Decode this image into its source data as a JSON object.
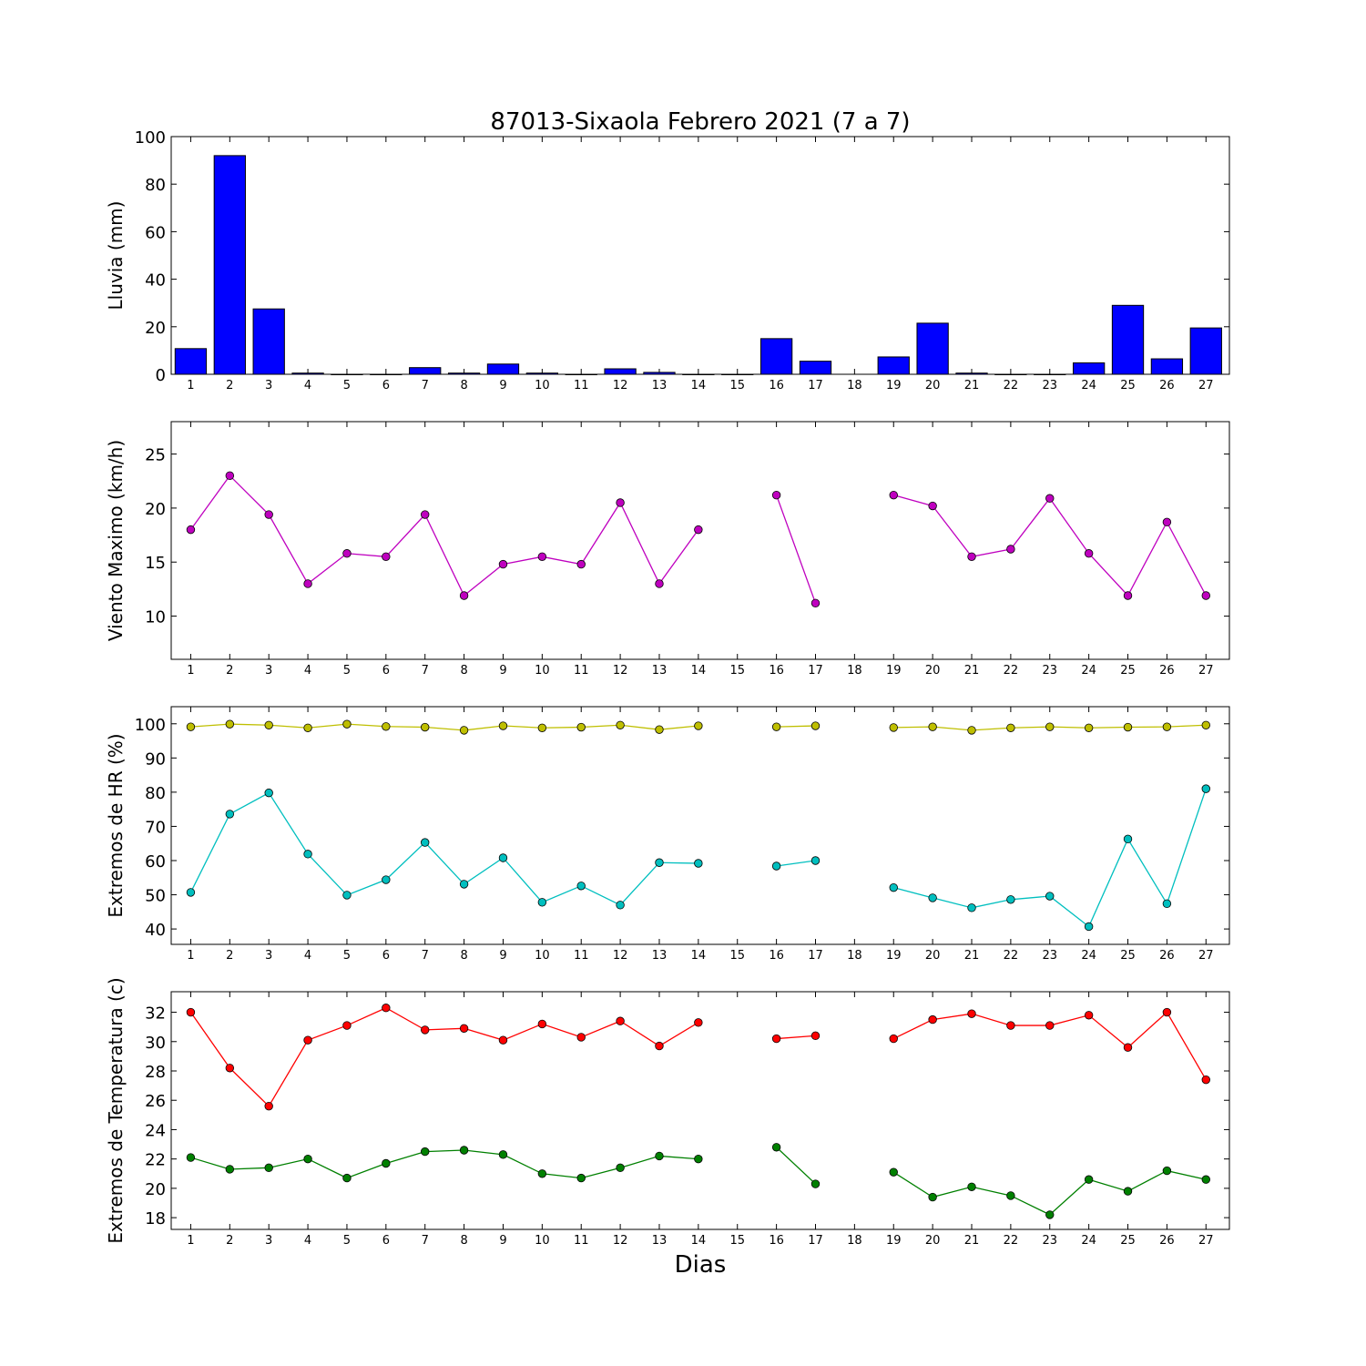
{
  "figure": {
    "title": "87013-Sixaola Febrero 2021  (7 a 7)",
    "xlabel": "Dias"
  },
  "chart_data": [
    {
      "type": "bar",
      "ylabel": "Lluvia (mm)",
      "categories": [
        1,
        2,
        3,
        4,
        5,
        6,
        7,
        8,
        9,
        10,
        11,
        12,
        13,
        14,
        15,
        16,
        17,
        18,
        19,
        20,
        21,
        22,
        23,
        24,
        25,
        26,
        27
      ],
      "ylim": [
        0,
        100
      ],
      "yticks": [
        0,
        20,
        40,
        60,
        80,
        100
      ],
      "color": "#0000ff",
      "series": [
        {
          "values": [
            10.8,
            92.0,
            27.5,
            0.5,
            0.0,
            0.0,
            2.8,
            0.5,
            4.3,
            0.5,
            0.0,
            2.3,
            0.8,
            0.0,
            0.0,
            15.0,
            5.5,
            null,
            7.3,
            21.5,
            0.5,
            0.0,
            0.0,
            4.8,
            29.0,
            6.5,
            19.5
          ]
        }
      ]
    },
    {
      "type": "line",
      "ylabel": "Viento Maximo (km/h)",
      "categories": [
        1,
        2,
        3,
        4,
        5,
        6,
        7,
        8,
        9,
        10,
        11,
        12,
        13,
        14,
        15,
        16,
        17,
        18,
        19,
        20,
        21,
        22,
        23,
        24,
        25,
        26,
        27
      ],
      "ylim": [
        6,
        28
      ],
      "yticks": [
        10,
        15,
        20,
        25
      ],
      "series": [
        {
          "color": "#bf00bf",
          "values": [
            18.0,
            23.0,
            19.4,
            13.0,
            15.8,
            15.5,
            19.4,
            11.9,
            14.8,
            15.5,
            14.8,
            20.5,
            13.0,
            18.0,
            null,
            21.2,
            11.2,
            null,
            21.2,
            20.2,
            15.5,
            16.2,
            20.9,
            15.8,
            11.9,
            18.7,
            11.9
          ]
        }
      ]
    },
    {
      "type": "line",
      "ylabel": "Extremos de HR (%)",
      "categories": [
        1,
        2,
        3,
        4,
        5,
        6,
        7,
        8,
        9,
        10,
        11,
        12,
        13,
        14,
        15,
        16,
        17,
        18,
        19,
        20,
        21,
        22,
        23,
        24,
        25,
        26,
        27
      ],
      "ylim": [
        35.5,
        105
      ],
      "yticks": [
        40,
        50,
        60,
        70,
        80,
        90,
        100
      ],
      "series": [
        {
          "color": "#bfbf00",
          "values": [
            99.1,
            99.9,
            99.6,
            98.8,
            99.9,
            99.2,
            99.0,
            98.1,
            99.4,
            98.8,
            99.0,
            99.6,
            98.3,
            99.4,
            null,
            99.1,
            99.4,
            null,
            98.9,
            99.1,
            98.1,
            98.8,
            99.1,
            98.8,
            99.0,
            99.1,
            99.6
          ]
        },
        {
          "color": "#00bfbf",
          "values": [
            50.7,
            73.6,
            79.8,
            61.9,
            49.9,
            54.4,
            65.3,
            53.1,
            60.8,
            47.8,
            52.6,
            47.0,
            59.4,
            59.2,
            null,
            58.4,
            60.0,
            null,
            52.1,
            49.1,
            46.2,
            48.6,
            49.6,
            40.7,
            66.3,
            47.4,
            81.0
          ]
        }
      ]
    },
    {
      "type": "line",
      "ylabel": "Extremos de Temperatura (c)",
      "categories": [
        1,
        2,
        3,
        4,
        5,
        6,
        7,
        8,
        9,
        10,
        11,
        12,
        13,
        14,
        15,
        16,
        17,
        18,
        19,
        20,
        21,
        22,
        23,
        24,
        25,
        26,
        27
      ],
      "ylim": [
        17.2,
        33.4
      ],
      "yticks": [
        18,
        20,
        22,
        24,
        26,
        28,
        30,
        32
      ],
      "series": [
        {
          "color": "#ff0000",
          "values": [
            32.0,
            28.2,
            25.6,
            30.1,
            31.1,
            32.3,
            30.8,
            30.9,
            30.1,
            31.2,
            30.3,
            31.4,
            29.7,
            31.3,
            null,
            30.2,
            30.4,
            null,
            30.2,
            31.5,
            31.9,
            31.1,
            31.1,
            31.8,
            29.6,
            32.0,
            27.4
          ]
        },
        {
          "color": "#008000",
          "values": [
            22.1,
            21.3,
            21.4,
            22.0,
            20.7,
            21.7,
            22.5,
            22.6,
            22.3,
            21.0,
            20.7,
            21.4,
            22.2,
            22.0,
            null,
            22.8,
            20.3,
            null,
            21.1,
            19.4,
            20.1,
            19.5,
            18.2,
            20.6,
            19.8,
            21.2,
            20.6
          ]
        }
      ]
    }
  ]
}
